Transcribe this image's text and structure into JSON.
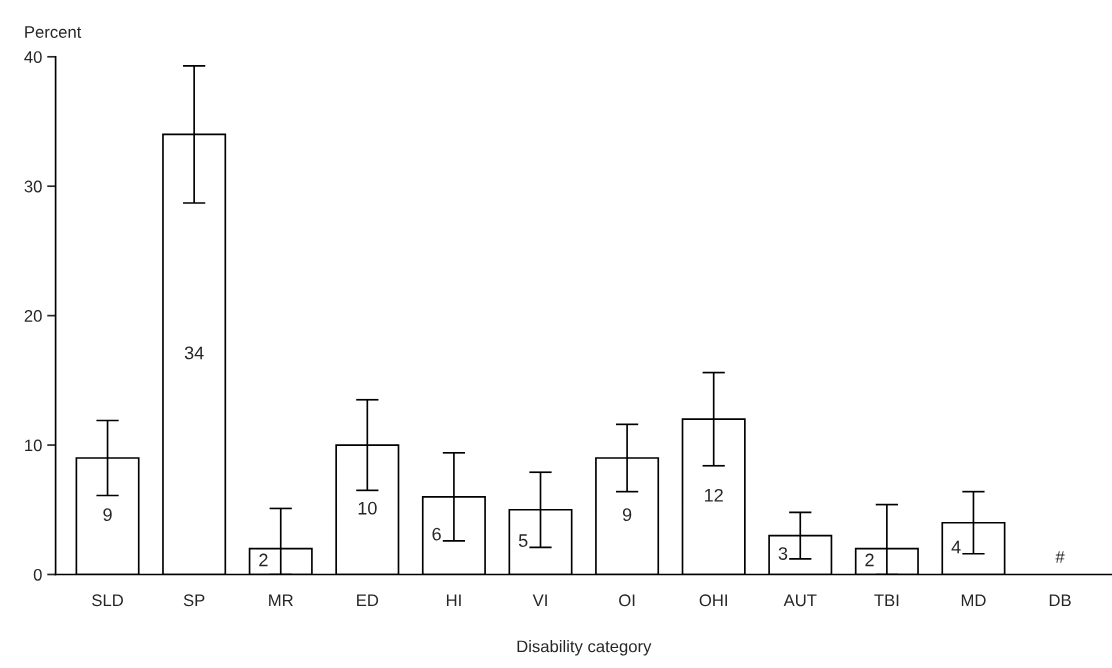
{
  "chart_data": {
    "type": "bar",
    "xlabel": "Disability category",
    "ylabel": "Percent",
    "categories": [
      "SLD",
      "SP",
      "MR",
      "ED",
      "HI",
      "VI",
      "OI",
      "OHI",
      "AUT",
      "TBI",
      "MD",
      "DB"
    ],
    "values": [
      9,
      34,
      2,
      10,
      6,
      5,
      9,
      12,
      3,
      2,
      4,
      null
    ],
    "errors": [
      2.9,
      5.3,
      [
        0,
        5.1
      ],
      3.5,
      3.4,
      2.9,
      2.6,
      3.6,
      1.8,
      [
        0,
        5.4
      ],
      2.4,
      null
    ],
    "value_labels": [
      "9",
      "34",
      "2",
      "10",
      "6",
      "5",
      "9",
      "12",
      "3",
      "2",
      "4",
      "#"
    ],
    "color": "#ffffff",
    "ylim": [
      0,
      40
    ],
    "yticks": [
      0,
      10,
      20,
      30,
      40
    ],
    "grid": false
  }
}
